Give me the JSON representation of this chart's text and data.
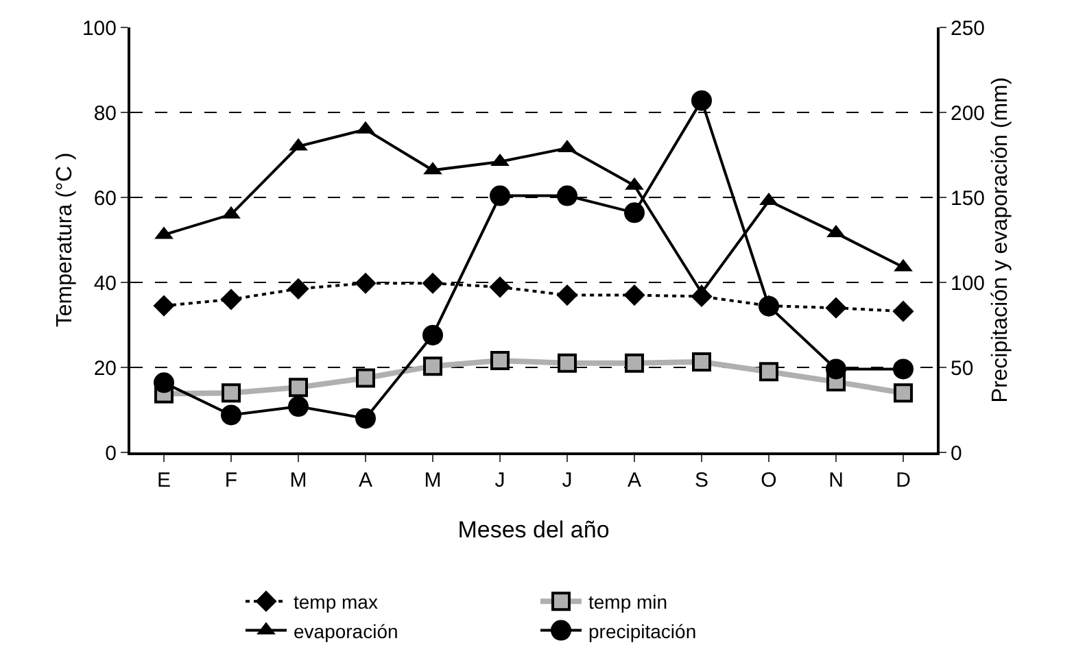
{
  "chart_data": {
    "type": "line",
    "xlabel": "Meses del año",
    "ylabel": "Temperatura (°C )",
    "y2label": "Precipitación y evaporación (mm)",
    "categories": [
      "E",
      "F",
      "M",
      "A",
      "M",
      "J",
      "J",
      "A",
      "S",
      "O",
      "N",
      "D"
    ],
    "ylim": [
      0,
      100
    ],
    "yticks": [
      0,
      20,
      40,
      60,
      80,
      100
    ],
    "y2lim": [
      0,
      250
    ],
    "y2ticks": [
      0,
      50,
      100,
      150,
      200,
      250
    ],
    "grid": "y",
    "legend": "bottom",
    "series": [
      {
        "name": "temp max",
        "color": "#000000",
        "marker": "diamond",
        "line_style": "dotted",
        "values": [
          34.5,
          36,
          38.5,
          39.8,
          39.8,
          38.9,
          37,
          37,
          36.7,
          34.5,
          34,
          33.2
        ]
      },
      {
        "name": "temp min",
        "color": "#b0b0b0",
        "marker": "square",
        "line_style": "solid",
        "values": [
          13.8,
          14,
          15.3,
          17.5,
          20.3,
          21.6,
          21,
          21,
          21.3,
          19,
          16.6,
          14
        ]
      },
      {
        "name": "evaporación",
        "color": "#000000",
        "marker": "triangle",
        "line_style": "solid",
        "axis": "y2",
        "values": [
          128,
          140,
          180,
          190,
          166,
          171,
          179,
          157,
          94,
          148,
          129,
          109
        ]
      },
      {
        "name": "precipitación",
        "color": "#000000",
        "marker": "circle",
        "line_style": "solid",
        "axis": "y2",
        "values": [
          41,
          22,
          27,
          20,
          69,
          151,
          151,
          141,
          207,
          86,
          49,
          49
        ]
      }
    ]
  }
}
